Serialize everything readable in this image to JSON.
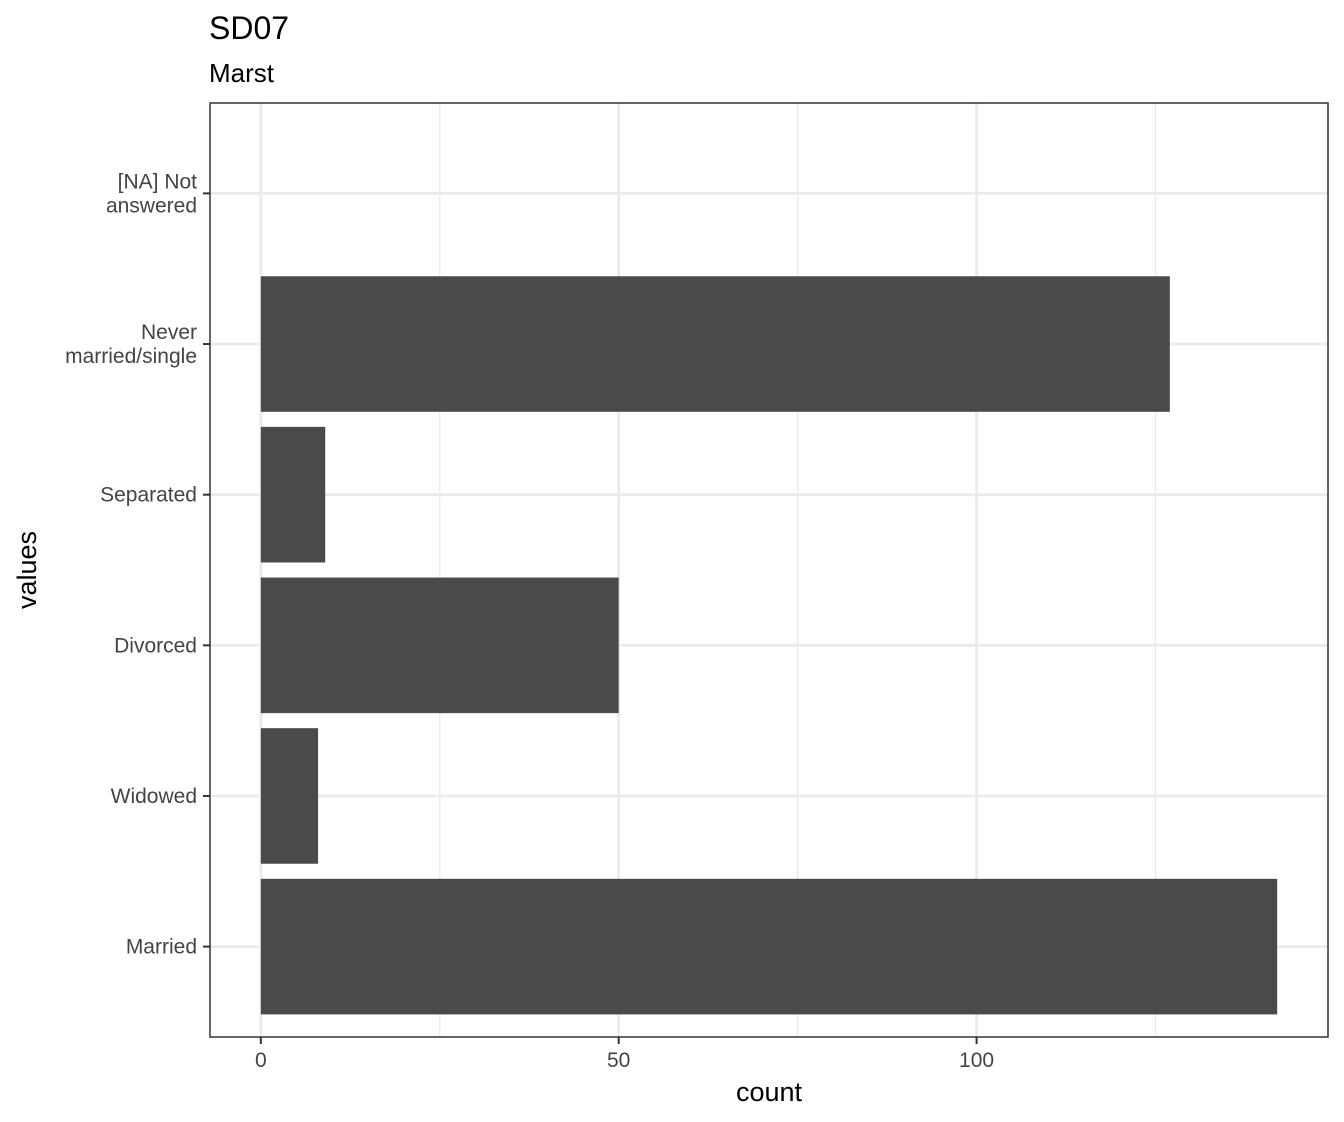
{
  "chart_data": {
    "type": "bar",
    "orientation": "horizontal",
    "title": "SD07",
    "subtitle": "Marst",
    "xlabel": "count",
    "ylabel": "values",
    "categories": [
      [
        "[NA] Not",
        "answered"
      ],
      [
        "Never",
        "married/single"
      ],
      [
        "Separated"
      ],
      [
        "Divorced"
      ],
      [
        "Widowed"
      ],
      [
        "Married"
      ]
    ],
    "values": [
      0,
      127,
      9,
      50,
      8,
      142
    ],
    "xlim": [
      -7.1,
      149.1
    ],
    "xticks": [
      0,
      50,
      100
    ],
    "xtick_labels": [
      "0",
      "50",
      "100"
    ],
    "grid": true,
    "bar_color": "#4a4a4a",
    "grid_color": "#ebebeb",
    "border_color": "#333333"
  }
}
